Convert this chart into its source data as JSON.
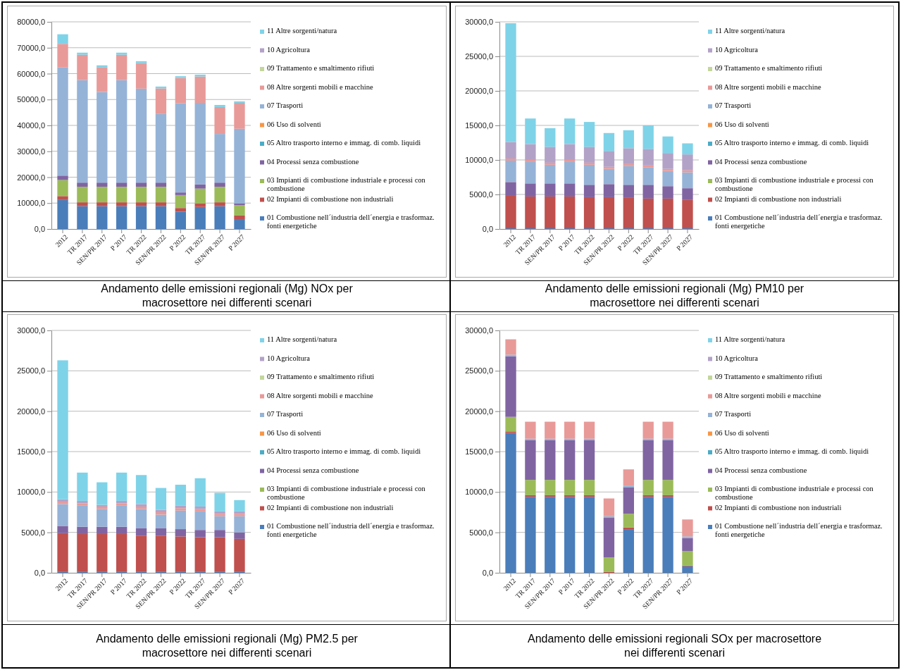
{
  "chart_data": [
    {
      "type": "bar",
      "stacked": true,
      "title": "Andamento delle emissioni regionali (Mg) NOx per macrosettore nei differenti scenari",
      "categories": [
        "2012",
        "TR 2017",
        "SEN/PR 2017",
        "P 2017",
        "TR 2022",
        "SEN/PR 2022",
        "P 2022",
        "TR 2027",
        "SEN/PR 2027",
        "P 2027"
      ],
      "ylim": [
        0,
        80000
      ],
      "yticks": [
        {
          "value": 0,
          "label": "0,0"
        },
        {
          "value": 10000,
          "label": "10000,0"
        },
        {
          "value": 20000,
          "label": "20000,0"
        },
        {
          "value": 30000,
          "label": "30000,0"
        },
        {
          "value": 40000,
          "label": "40000,0"
        },
        {
          "value": 50000,
          "label": "50000,0"
        },
        {
          "value": 60000,
          "label": "60000,0"
        },
        {
          "value": 70000,
          "label": "70000,0"
        },
        {
          "value": 80000,
          "label": "80000,0"
        }
      ],
      "grid": "y",
      "legend": "right",
      "series": [
        {
          "name": "01 Combustione nell´industria dell´energia e trasformaz. fonti energetiche",
          "color": "#4a7ebb",
          "values": [
            11200,
            8800,
            8800,
            8800,
            8800,
            8800,
            6700,
            8500,
            8800,
            3800
          ]
        },
        {
          "name": "02 Impianti di combustione non industriali",
          "color": "#c0504d",
          "values": [
            1500,
            1500,
            1500,
            1500,
            1500,
            1500,
            1400,
            1400,
            1500,
            1400
          ]
        },
        {
          "name": "03 Impianti di combustione industriale e processi con combustione",
          "color": "#9bbb59",
          "values": [
            6200,
            6000,
            6000,
            6000,
            6000,
            6000,
            5000,
            5700,
            6000,
            4000
          ]
        },
        {
          "name": "04 Processi senza combustione",
          "color": "#8064a2",
          "values": [
            1700,
            1600,
            1600,
            1600,
            1600,
            1600,
            1000,
            1600,
            1600,
            700
          ]
        },
        {
          "name": "05 Altro trasporto interno e immag. di comb. liquidi",
          "color": "#4bacc6",
          "values": [
            0,
            0,
            0,
            0,
            0,
            0,
            0,
            0,
            0,
            0
          ]
        },
        {
          "name": "06 Uso di solventi",
          "color": "#f79646",
          "values": [
            0,
            0,
            0,
            0,
            0,
            0,
            0,
            0,
            0,
            0
          ]
        },
        {
          "name": "07 Trasporti",
          "color": "#95b3d7",
          "values": [
            41800,
            39600,
            35000,
            39600,
            36300,
            26500,
            34500,
            31500,
            18800,
            28800
          ]
        },
        {
          "name": "08 Altre sorgenti mobili e macchine",
          "color": "#e89a98",
          "values": [
            9100,
            9800,
            9600,
            9800,
            9900,
            9900,
            9700,
            10200,
            10400,
            10000
          ]
        },
        {
          "name": "09 Trattamento e smaltimento rifiuti",
          "color": "#c3d69b",
          "values": [
            0,
            0,
            0,
            0,
            0,
            0,
            0,
            0,
            0,
            0
          ]
        },
        {
          "name": "10 Agricoltura",
          "color": "#b3a2c7",
          "values": [
            0,
            0,
            0,
            0,
            0,
            0,
            0,
            0,
            0,
            0
          ]
        },
        {
          "name": "11 Altre sorgenti/natura",
          "color": "#7fd3e8",
          "values": [
            3700,
            800,
            700,
            800,
            700,
            700,
            700,
            700,
            800,
            600
          ]
        }
      ]
    },
    {
      "type": "bar",
      "stacked": true,
      "title": "Andamento delle emissioni regionali (Mg) PM10 per macrosettore nei differenti scenari",
      "categories": [
        "2012",
        "TR 2017",
        "SEN/PR 2017",
        "P 2017",
        "TR 2022",
        "SEN/PR 2022",
        "P 2022",
        "TR 2027",
        "SEN/PR 2027",
        "P 2027"
      ],
      "ylim": [
        0,
        30000
      ],
      "yticks": [
        {
          "value": 0,
          "label": "0,0"
        },
        {
          "value": 5000,
          "label": "5000,0"
        },
        {
          "value": 10000,
          "label": "10000,0"
        },
        {
          "value": 15000,
          "label": "15000,0"
        },
        {
          "value": 20000,
          "label": "20000,0"
        },
        {
          "value": 25000,
          "label": "25000,0"
        },
        {
          "value": 30000,
          "label": "30000,0"
        }
      ],
      "grid": "y",
      "legend": "right",
      "series": [
        {
          "name": "01 Combustione nell´industria dell´energia e trasformaz. fonti energetiche",
          "color": "#4a7ebb",
          "values": [
            100,
            100,
            100,
            100,
            100,
            100,
            100,
            100,
            100,
            100
          ]
        },
        {
          "name": "02 Impianti di combustione non industriali",
          "color": "#c0504d",
          "values": [
            4700,
            4600,
            4600,
            4600,
            4500,
            4500,
            4400,
            4300,
            4300,
            4100
          ]
        },
        {
          "name": "03 Impianti di combustione industriale e processi con combustione",
          "color": "#9bbb59",
          "values": [
            0,
            0,
            0,
            0,
            0,
            0,
            0,
            0,
            0,
            0
          ]
        },
        {
          "name": "04 Processi senza combustione",
          "color": "#8064a2",
          "values": [
            2000,
            1900,
            1900,
            1900,
            1800,
            1900,
            1900,
            2000,
            1800,
            1700
          ]
        },
        {
          "name": "05 Altro trasporto interno e immag. di comb. liquidi",
          "color": "#4bacc6",
          "values": [
            0,
            0,
            0,
            0,
            0,
            0,
            0,
            0,
            0,
            0
          ]
        },
        {
          "name": "06 Uso di solventi",
          "color": "#f79646",
          "values": [
            0,
            0,
            0,
            0,
            0,
            0,
            0,
            0,
            0,
            0
          ]
        },
        {
          "name": "07 Trasporti",
          "color": "#95b3d7",
          "values": [
            3100,
            3100,
            2700,
            3100,
            2900,
            2200,
            2700,
            2500,
            2200,
            2300
          ]
        },
        {
          "name": "08 Altre sorgenti mobili e macchine",
          "color": "#e89a98",
          "values": [
            300,
            300,
            300,
            300,
            300,
            300,
            300,
            300,
            300,
            300
          ]
        },
        {
          "name": "09 Trattamento e smaltimento rifiuti",
          "color": "#c3d69b",
          "values": [
            0,
            0,
            0,
            0,
            0,
            0,
            0,
            0,
            0,
            0
          ]
        },
        {
          "name": "10 Agricoltura",
          "color": "#b3a2c7",
          "values": [
            2400,
            2300,
            2300,
            2300,
            2300,
            2300,
            2300,
            2400,
            2300,
            2300
          ]
        },
        {
          "name": "11 Altre sorgenti/natura",
          "color": "#7fd3e8",
          "values": [
            17200,
            3700,
            2700,
            3700,
            3600,
            2600,
            2600,
            3400,
            2400,
            1600
          ]
        }
      ]
    },
    {
      "type": "bar",
      "stacked": true,
      "title": "Andamento delle emissioni regionali (Mg) PM2.5 per macrosettore nei differenti scenari",
      "categories": [
        "2012",
        "TR 2017",
        "SEN/PR 2017",
        "P 2017",
        "TR 2022",
        "SEN/PR 2022",
        "P 2022",
        "TR 2027",
        "SEN/PR 2027",
        "P 2027"
      ],
      "ylim": [
        0,
        30000
      ],
      "yticks": [
        {
          "value": 0,
          "label": "0,0"
        },
        {
          "value": 5000,
          "label": "5000,0"
        },
        {
          "value": 10000,
          "label": "10000,0"
        },
        {
          "value": 15000,
          "label": "15000,0"
        },
        {
          "value": 20000,
          "label": "20000,0"
        },
        {
          "value": 25000,
          "label": "25000,0"
        },
        {
          "value": 30000,
          "label": "30000,0"
        }
      ],
      "grid": "y",
      "legend": "right",
      "series": [
        {
          "name": "01 Combustione nell´industria dell´energia e trasformaz. fonti energetiche",
          "color": "#4a7ebb",
          "values": [
            100,
            100,
            100,
            100,
            100,
            100,
            100,
            100,
            100,
            100
          ]
        },
        {
          "name": "02 Impianti di combustione non industriali",
          "color": "#c0504d",
          "values": [
            4800,
            4700,
            4700,
            4700,
            4500,
            4500,
            4400,
            4300,
            4300,
            4100
          ]
        },
        {
          "name": "03 Impianti di combustione industriale e processi con combustione",
          "color": "#9bbb59",
          "values": [
            0,
            0,
            0,
            0,
            0,
            0,
            0,
            0,
            0,
            0
          ]
        },
        {
          "name": "04 Processi senza combustione",
          "color": "#8064a2",
          "values": [
            900,
            900,
            900,
            900,
            900,
            900,
            900,
            900,
            900,
            800
          ]
        },
        {
          "name": "05 Altro trasporto interno e immag. di comb. liquidi",
          "color": "#4bacc6",
          "values": [
            0,
            0,
            0,
            0,
            0,
            0,
            0,
            0,
            0,
            0
          ]
        },
        {
          "name": "06 Uso di solventi",
          "color": "#f79646",
          "values": [
            0,
            0,
            0,
            0,
            0,
            0,
            0,
            0,
            0,
            0
          ]
        },
        {
          "name": "07 Trasporti",
          "color": "#95b3d7",
          "values": [
            2700,
            2600,
            2200,
            2600,
            2400,
            1700,
            2300,
            2300,
            1700,
            2000
          ]
        },
        {
          "name": "08 Altre sorgenti mobili e macchine",
          "color": "#e89a98",
          "values": [
            300,
            300,
            300,
            300,
            300,
            300,
            300,
            300,
            300,
            300
          ]
        },
        {
          "name": "09 Trattamento e smaltimento rifiuti",
          "color": "#c3d69b",
          "values": [
            0,
            0,
            0,
            0,
            0,
            0,
            0,
            0,
            0,
            0
          ]
        },
        {
          "name": "10 Agricoltura",
          "color": "#b3a2c7",
          "values": [
            300,
            300,
            200,
            300,
            300,
            300,
            300,
            300,
            300,
            300
          ]
        },
        {
          "name": "11 Altre sorgenti/natura",
          "color": "#7fd3e8",
          "values": [
            17200,
            3500,
            2800,
            3500,
            3600,
            2700,
            2600,
            3500,
            2300,
            1400
          ]
        }
      ]
    },
    {
      "type": "bar",
      "stacked": true,
      "title": "Andamento delle emissioni regionali SOx per macrosettore nei differenti scenari",
      "categories": [
        "2012",
        "TR 2017",
        "SEN/PR 2017",
        "P 2017",
        "TR 2022",
        "SEN/PR 2022",
        "P 2022",
        "TR 2027",
        "SEN/PR 2027",
        "P 2027"
      ],
      "ylim": [
        0,
        30000
      ],
      "yticks": [
        {
          "value": 0,
          "label": "0,0"
        },
        {
          "value": 5000,
          "label": "5000,0"
        },
        {
          "value": 10000,
          "label": "10000,0"
        },
        {
          "value": 15000,
          "label": "15000,0"
        },
        {
          "value": 20000,
          "label": "20000,0"
        },
        {
          "value": 25000,
          "label": "25000,0"
        },
        {
          "value": 30000,
          "label": "30000,0"
        }
      ],
      "grid": "y",
      "legend": "right",
      "series": [
        {
          "name": "01 Combustione nell´industria dell´energia e trasformaz. fonti energetiche",
          "color": "#4a7ebb",
          "values": [
            17300,
            9400,
            9400,
            9400,
            9400,
            0,
            5400,
            9400,
            9400,
            800
          ]
        },
        {
          "name": "02 Impianti di combustione non industriali",
          "color": "#c0504d",
          "values": [
            200,
            200,
            200,
            200,
            200,
            100,
            200,
            200,
            200,
            100
          ]
        },
        {
          "name": "03 Impianti di combustione industriale e processi con combustione",
          "color": "#9bbb59",
          "values": [
            1800,
            1900,
            1900,
            1900,
            1900,
            1800,
            1700,
            1900,
            1900,
            1800
          ]
        },
        {
          "name": "04 Processi senza combustione",
          "color": "#8064a2",
          "values": [
            7500,
            4900,
            4900,
            4900,
            4900,
            4900,
            3300,
            4900,
            4900,
            1600
          ]
        },
        {
          "name": "05 Altro trasporto interno e immag. di comb. liquidi",
          "color": "#4bacc6",
          "values": [
            0,
            0,
            0,
            0,
            0,
            0,
            0,
            0,
            0,
            0
          ]
        },
        {
          "name": "06 Uso di solventi",
          "color": "#f79646",
          "values": [
            0,
            0,
            0,
            0,
            0,
            0,
            0,
            0,
            0,
            0
          ]
        },
        {
          "name": "07 Trasporti",
          "color": "#95b3d7",
          "values": [
            200,
            200,
            200,
            200,
            200,
            200,
            200,
            200,
            200,
            200
          ]
        },
        {
          "name": "08 Altre sorgenti mobili e macchine",
          "color": "#e89a98",
          "values": [
            1900,
            2100,
            2100,
            2100,
            2100,
            2200,
            2000,
            2100,
            2100,
            2100
          ]
        },
        {
          "name": "09 Trattamento e smaltimento rifiuti",
          "color": "#c3d69b",
          "values": [
            0,
            0,
            0,
            0,
            0,
            0,
            0,
            0,
            0,
            0
          ]
        },
        {
          "name": "10 Agricoltura",
          "color": "#b3a2c7",
          "values": [
            0,
            0,
            0,
            0,
            0,
            0,
            0,
            0,
            0,
            0
          ]
        },
        {
          "name": "11 Altre sorgenti/natura",
          "color": "#7fd3e8",
          "values": [
            0,
            0,
            0,
            0,
            0,
            0,
            0,
            0,
            0,
            0
          ]
        }
      ]
    }
  ]
}
